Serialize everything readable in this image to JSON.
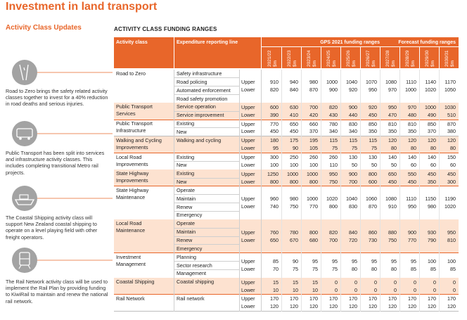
{
  "title": "Investment in land transport",
  "sidebar": {
    "heading": "Activity Class Updates",
    "items": [
      {
        "text": "Road to Zero brings the safety related activity classes together to invest for a 40% reduction in road deaths and serious injuries."
      },
      {
        "text": "Public Transport has been split into services and infrastructure activity classes. This includes completing transitional Metro rail projects."
      },
      {
        "text": "The Coastal Shipping activity class will support New Zealand coastal shipping to operate on a level playing field with other freight operators."
      },
      {
        "text": "The Rail Network activity class will be used to implement the Rail Plan by providing funding to KiwiRail to maintain and renew the national rail network."
      }
    ]
  },
  "table": {
    "heading": "ACTIVITY CLASS FUNDING RANGES",
    "columns": {
      "activity_class": "Activity class",
      "reporting_line": "Expenditure reporting line",
      "gps": "GPS 2021 funding ranges",
      "forecast": "Forecast funding ranges"
    },
    "gps_years": [
      "2021/22",
      "2022/23",
      "2023/24",
      "2024/25",
      "2025/26",
      "2026/27"
    ],
    "forecast_years": [
      "2027/28",
      "2028/29",
      "2029/30",
      "2030/31"
    ],
    "unit": "$m",
    "upper": "Upper",
    "lower": "Lower",
    "rows": [
      {
        "activity_class": "Road to Zero",
        "lines": [
          "Safety infrastructure",
          "Road policing",
          "Automated enforcement",
          "Road safety promotion"
        ],
        "upper": [
          910,
          940,
          980,
          1000,
          1040,
          1070,
          1080,
          1110,
          1140,
          1170
        ],
        "lower": [
          820,
          840,
          870,
          900,
          920,
          950,
          970,
          1000,
          1020,
          1050
        ]
      },
      {
        "activity_class": "Public Transport Services",
        "lines": [
          "Service operation",
          "Service improvement"
        ],
        "upper": [
          600,
          630,
          700,
          820,
          900,
          920,
          950,
          970,
          1000,
          1030
        ],
        "lower": [
          390,
          410,
          420,
          430,
          440,
          450,
          470,
          480,
          490,
          510
        ]
      },
      {
        "activity_class": "Public Transport Infrastructure",
        "lines": [
          "Existing",
          "New"
        ],
        "upper": [
          770,
          650,
          660,
          780,
          830,
          850,
          810,
          810,
          850,
          870
        ],
        "lower": [
          450,
          450,
          370,
          340,
          340,
          350,
          350,
          350,
          370,
          380
        ]
      },
      {
        "activity_class": "Walking and Cycling Improvements",
        "lines": [
          "Walking and cycling"
        ],
        "upper": [
          180,
          175,
          195,
          115,
          115,
          115,
          120,
          120,
          120,
          120
        ],
        "lower": [
          95,
          90,
          105,
          75,
          75,
          75,
          80,
          80,
          80,
          80
        ]
      },
      {
        "activity_class": "Local Road Improvements",
        "lines": [
          "Existing",
          "New"
        ],
        "upper": [
          300,
          250,
          260,
          260,
          130,
          130,
          140,
          140,
          140,
          150
        ],
        "lower": [
          100,
          100,
          100,
          110,
          50,
          50,
          50,
          60,
          60,
          60
        ]
      },
      {
        "activity_class": "State Highway Improvements",
        "lines": [
          "Existing",
          "New"
        ],
        "upper": [
          1250,
          1000,
          1000,
          950,
          900,
          800,
          650,
          550,
          450,
          450
        ],
        "lower": [
          800,
          800,
          800,
          750,
          700,
          600,
          450,
          450,
          350,
          300
        ]
      },
      {
        "activity_class": "State Highway Maintenance",
        "lines": [
          "Operate",
          "Maintain",
          "Renew",
          "Emergency"
        ],
        "upper": [
          960,
          980,
          1000,
          1020,
          1040,
          1060,
          1080,
          1110,
          1150,
          1190
        ],
        "lower": [
          740,
          750,
          770,
          800,
          830,
          870,
          910,
          950,
          980,
          1020
        ]
      },
      {
        "activity_class": "Local Road Maintenance",
        "lines": [
          "Operate",
          "Maintain",
          "Renew",
          "Emergency"
        ],
        "upper": [
          760,
          780,
          800,
          820,
          840,
          860,
          880,
          900,
          930,
          950
        ],
        "lower": [
          650,
          670,
          680,
          700,
          720,
          730,
          750,
          770,
          790,
          810
        ]
      },
      {
        "activity_class": "Investment Management",
        "lines": [
          "Planning",
          "Sector research",
          "Management"
        ],
        "upper": [
          85,
          90,
          95,
          95,
          95,
          95,
          95,
          95,
          100,
          100
        ],
        "lower": [
          70,
          75,
          75,
          75,
          80,
          80,
          80,
          85,
          85,
          85
        ]
      },
      {
        "activity_class": "Coastal Shipping",
        "lines": [
          "Coastal shipping"
        ],
        "upper": [
          15,
          15,
          15,
          0,
          0,
          0,
          0,
          0,
          0,
          0
        ],
        "lower": [
          10,
          10,
          10,
          0,
          0,
          0,
          0,
          0,
          0,
          0
        ]
      },
      {
        "activity_class": "Rail Network",
        "lines": [
          "Rail network"
        ],
        "upper": [
          170,
          170,
          170,
          170,
          170,
          170,
          170,
          170,
          170,
          170
        ],
        "lower": [
          120,
          120,
          120,
          120,
          120,
          120,
          120,
          120,
          120,
          120
        ]
      }
    ]
  }
}
